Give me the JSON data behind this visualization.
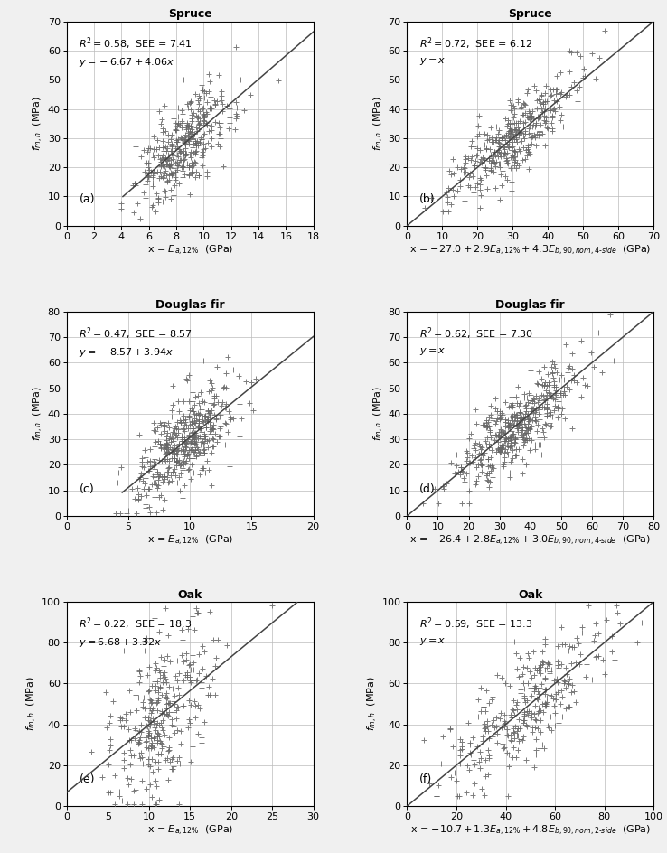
{
  "panels": [
    {
      "title": "Spruce",
      "label": "(a)",
      "r2_line": "$R^2 = 0.58$,  SEE = 7.41",
      "eq_line": "$y = -6.67 + 4.06x$",
      "xlabel": "x = $E_{a,12\\%}$  (GPa)",
      "ylabel": "$f_{m,h}$  (MPa)",
      "xlim": [
        0,
        18
      ],
      "ylim": [
        0,
        70
      ],
      "xticks": [
        0,
        2,
        4,
        6,
        8,
        10,
        12,
        14,
        16,
        18
      ],
      "yticks": [
        0,
        10,
        20,
        30,
        40,
        50,
        60,
        70
      ],
      "slope": 4.06,
      "intercept": -6.67,
      "line_x0": 4.1,
      "line_x1": 18.0,
      "seed": 42,
      "n": 380,
      "x_mean": 8.5,
      "x_std": 1.8,
      "resid_std": 7.2,
      "x_clip_lo": 4.0,
      "x_clip_hi": 17.5,
      "y_clip_lo": 1.0,
      "y_clip_hi": 68.0
    },
    {
      "title": "Spruce",
      "label": "(b)",
      "r2_line": "$R^2 = 0.72$,  SEE = 6.12",
      "eq_line": "$y = x$",
      "xlabel": "x = $-27.0 + 2.9E_{a,12\\%} + 4.3E_{b,90,nom,4\\text{-}side}$  (GPa)",
      "ylabel": "$f_{m,h}$  (MPa)",
      "xlim": [
        0,
        70
      ],
      "ylim": [
        0,
        70
      ],
      "xticks": [
        0,
        10,
        20,
        30,
        40,
        50,
        60,
        70
      ],
      "yticks": [
        0,
        10,
        20,
        30,
        40,
        50,
        60,
        70
      ],
      "slope": 1.0,
      "intercept": 0.0,
      "line_x0": 0.0,
      "line_x1": 70.0,
      "seed": 43,
      "n": 380,
      "x_mean": 30.0,
      "x_std": 9.0,
      "resid_std": 6.0,
      "x_clip_lo": 5.0,
      "x_clip_hi": 65.0,
      "y_clip_lo": 5.0,
      "y_clip_hi": 68.0
    },
    {
      "title": "Douglas fir",
      "label": "(c)",
      "r2_line": "$R^2 = 0.47$,  SEE = 8.57",
      "eq_line": "$y = -8.57 + 3.94x$",
      "xlabel": "x = $E_{a,12\\%}$  (GPa)",
      "ylabel": "$f_{m,h}$  (MPa)",
      "xlim": [
        0,
        20
      ],
      "ylim": [
        0,
        80
      ],
      "xticks": [
        0,
        5,
        10,
        15,
        20
      ],
      "yticks": [
        0,
        10,
        20,
        30,
        40,
        50,
        60,
        70,
        80
      ],
      "slope": 3.94,
      "intercept": -8.57,
      "line_x0": 4.5,
      "line_x1": 20.0,
      "seed": 44,
      "n": 450,
      "x_mean": 9.5,
      "x_std": 2.0,
      "resid_std": 8.5,
      "x_clip_lo": 4.0,
      "x_clip_hi": 19.5,
      "y_clip_lo": 1.0,
      "y_clip_hi": 79.0
    },
    {
      "title": "Douglas fir",
      "label": "(d)",
      "r2_line": "$R^2 = 0.62$,  SEE = 7.30",
      "eq_line": "$y = x$",
      "xlabel": "x = $-26.4 + 2.8E_{a,12\\%} + 3.0E_{b,90,nom,4\\text{-}side}$  (GPa)",
      "ylabel": "$f_{m,h}$  (MPa)",
      "xlim": [
        0,
        80
      ],
      "ylim": [
        0,
        80
      ],
      "xticks": [
        0,
        10,
        20,
        30,
        40,
        50,
        60,
        70,
        80
      ],
      "yticks": [
        0,
        10,
        20,
        30,
        40,
        50,
        60,
        70,
        80
      ],
      "slope": 1.0,
      "intercept": 0.0,
      "line_x0": 0.0,
      "line_x1": 80.0,
      "seed": 45,
      "n": 450,
      "x_mean": 36.0,
      "x_std": 10.0,
      "resid_std": 7.2,
      "x_clip_lo": 5.0,
      "x_clip_hi": 75.0,
      "y_clip_lo": 5.0,
      "y_clip_hi": 79.0
    },
    {
      "title": "Oak",
      "label": "(e)",
      "r2_line": "$R^2 = 0.22$,  SEE = 18.3",
      "eq_line": "$y = 6.68 + 3.32x$",
      "xlabel": "x = $E_{a,12\\%}$  (GPa)",
      "ylabel": "$f_{m,h}$  (MPa)",
      "xlim": [
        0,
        30
      ],
      "ylim": [
        0,
        100
      ],
      "xticks": [
        0,
        5,
        10,
        15,
        20,
        25,
        30
      ],
      "yticks": [
        0,
        20,
        40,
        60,
        80,
        100
      ],
      "slope": 3.32,
      "intercept": 6.68,
      "line_x0": 0.0,
      "line_x1": 28.0,
      "seed": 46,
      "n": 320,
      "x_mean": 11.5,
      "x_std": 3.2,
      "resid_std": 18.0,
      "x_clip_lo": 3.0,
      "x_clip_hi": 28.0,
      "y_clip_lo": 1.0,
      "y_clip_hi": 98.0
    },
    {
      "title": "Oak",
      "label": "(f)",
      "r2_line": "$R^2 = 0.59$,  SEE = 13.3",
      "eq_line": "$y = x$",
      "xlabel": "x = $-10.7 + 1.3E_{a,12\\%} + 4.8E_{b,90,nom,2\\text{-}side}$  (GPa)",
      "ylabel": "$f_{m,h}$  (MPa)",
      "xlim": [
        0,
        100
      ],
      "ylim": [
        0,
        100
      ],
      "xticks": [
        0,
        20,
        40,
        60,
        80,
        100
      ],
      "yticks": [
        0,
        20,
        40,
        60,
        80,
        100
      ],
      "slope": 1.0,
      "intercept": 0.0,
      "line_x0": 0.0,
      "line_x1": 100.0,
      "seed": 47,
      "n": 320,
      "x_mean": 48.0,
      "x_std": 16.0,
      "resid_std": 13.0,
      "x_clip_lo": 5.0,
      "x_clip_hi": 95.0,
      "y_clip_lo": 5.0,
      "y_clip_hi": 98.0
    }
  ],
  "marker_color": "#666666",
  "marker_size": 18,
  "marker_lw": 0.7,
  "line_color": "#444444",
  "line_width": 1.1,
  "grid_color": "#bbbbbb",
  "grid_lw": 0.5,
  "bg_color": "#ffffff",
  "fig_bg": "#f0f0f0",
  "title_fontsize": 9,
  "title_fontweight": "bold",
  "label_fontsize": 8,
  "annot_fontsize": 8,
  "tick_fontsize": 8,
  "panel_label_fontsize": 9
}
